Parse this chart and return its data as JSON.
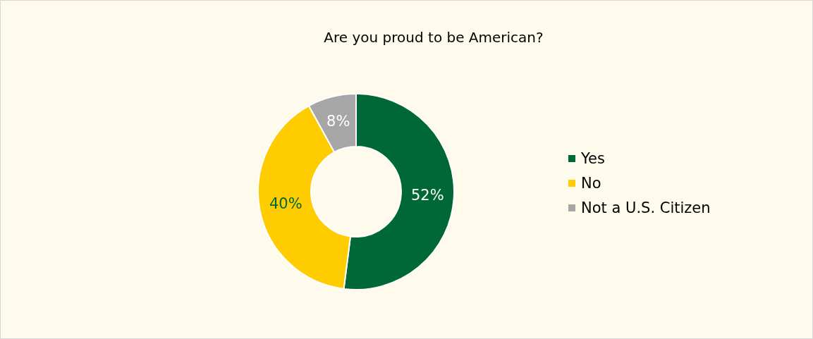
{
  "chart_data": {
    "type": "donut",
    "title": "Are you proud to be American?",
    "categories": [
      "Yes",
      "No",
      "Not a U.S. Citizen"
    ],
    "values": [
      52,
      40,
      8
    ],
    "colors": [
      "#006837",
      "#ffcc00",
      "#a6a6a6"
    ],
    "value_labels": [
      "52%",
      "40%",
      "8%"
    ],
    "legend": "right"
  }
}
